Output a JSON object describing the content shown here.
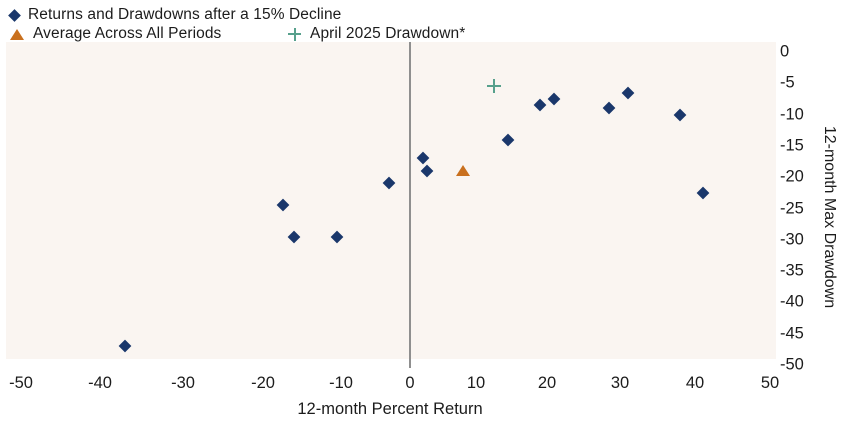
{
  "chart_data": {
    "type": "scatter",
    "title": "",
    "xlabel": "12-month Percent Return",
    "ylabel": "12-month Max Drawdown",
    "xlim": [
      -50,
      50
    ],
    "ylim": [
      -50,
      0
    ],
    "x_ticks": [
      -50,
      -40,
      -30,
      -20,
      -10,
      0,
      10,
      20,
      30,
      40,
      50
    ],
    "y_ticks": [
      0,
      -5,
      -10,
      -15,
      -20,
      -25,
      -30,
      -35,
      -40,
      -45,
      -50
    ],
    "grid": false,
    "legend_position": "top-left",
    "zero_reference_line_at_x": 0,
    "plot_bg_color": "#faf5f1",
    "zero_line_color": "#8f8f8f",
    "text_color": "#1c1c1c",
    "series": [
      {
        "name": "Returns and Drawdowns after a 15% Decline",
        "marker": "diamond",
        "color": "#1a376b",
        "points": [
          [
            -37,
            -47
          ],
          [
            -17.5,
            -24.5
          ],
          [
            -16,
            -29.5
          ],
          [
            -10.5,
            -29.5
          ],
          [
            -3,
            -21
          ],
          [
            2,
            -17
          ],
          [
            2.5,
            -19
          ],
          [
            14.5,
            -14
          ],
          [
            19,
            -8.5
          ],
          [
            21,
            -7.5
          ],
          [
            28.5,
            -9
          ],
          [
            31,
            -6.5
          ],
          [
            38,
            -10
          ],
          [
            41,
            -22.5
          ]
        ]
      },
      {
        "name": "Average Across All Periods",
        "marker": "triangle",
        "color": "#c9701e",
        "points": [
          [
            8,
            -19
          ]
        ]
      },
      {
        "name": "April 2025 Drawdown*",
        "marker": "plus",
        "color": "#57a08c",
        "points": [
          [
            12.5,
            -5.5
          ]
        ]
      }
    ]
  }
}
